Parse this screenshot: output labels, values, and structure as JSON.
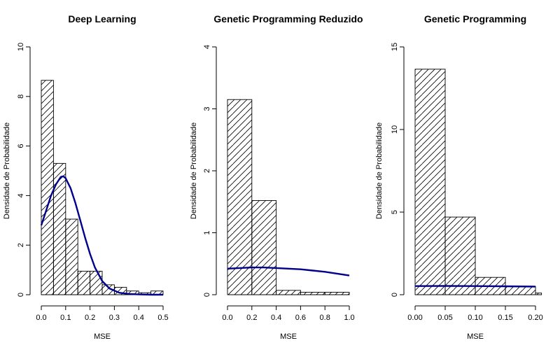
{
  "colors": {
    "curve": "#00008B",
    "bars": "#000000",
    "background": "#ffffff"
  },
  "chart_data": [
    {
      "type": "bar",
      "subtype": "histogram-with-density-curve",
      "title": "Deep Learning",
      "xlabel": "MSE",
      "ylabel": "Densidade de Probabilidade",
      "xlim": [
        0,
        0.5
      ],
      "ylim": [
        0,
        10
      ],
      "xticks": [
        "0.0",
        "0.1",
        "0.2",
        "0.3",
        "0.4",
        "0.5"
      ],
      "yticks": [
        "0",
        "2",
        "4",
        "6",
        "8",
        "10"
      ],
      "bins": [
        {
          "start": 0.0,
          "end": 0.05,
          "density": 8.65
        },
        {
          "start": 0.05,
          "end": 0.1,
          "density": 5.3
        },
        {
          "start": 0.1,
          "end": 0.15,
          "density": 3.05
        },
        {
          "start": 0.15,
          "end": 0.2,
          "density": 0.95
        },
        {
          "start": 0.2,
          "end": 0.25,
          "density": 0.95
        },
        {
          "start": 0.25,
          "end": 0.3,
          "density": 0.4
        },
        {
          "start": 0.3,
          "end": 0.35,
          "density": 0.3
        },
        {
          "start": 0.35,
          "end": 0.4,
          "density": 0.15
        },
        {
          "start": 0.4,
          "end": 0.45,
          "density": 0.08
        },
        {
          "start": 0.45,
          "end": 0.5,
          "density": 0.15
        }
      ],
      "curve": {
        "x": [
          0.0,
          0.02,
          0.04,
          0.06,
          0.08,
          0.09,
          0.1,
          0.12,
          0.14,
          0.16,
          0.18,
          0.2,
          0.22,
          0.25,
          0.28,
          0.32,
          0.36,
          0.4,
          0.45,
          0.5
        ],
        "y": [
          2.8,
          3.4,
          4.0,
          4.45,
          4.75,
          4.78,
          4.7,
          4.3,
          3.7,
          3.0,
          2.3,
          1.65,
          1.1,
          0.55,
          0.25,
          0.08,
          0.03,
          0.01,
          0.0,
          0.0
        ]
      }
    },
    {
      "type": "bar",
      "subtype": "histogram-with-density-curve",
      "title": "Genetic Programming Reduzido",
      "xlabel": "MSE",
      "ylabel": "Densidade de Probabilidade",
      "xlim": [
        0,
        1.0
      ],
      "ylim": [
        0,
        4
      ],
      "xticks": [
        "0.0",
        "0.2",
        "0.4",
        "0.6",
        "0.8",
        "1.0"
      ],
      "yticks": [
        "0",
        "1",
        "2",
        "3",
        "4"
      ],
      "bins": [
        {
          "start": 0.0,
          "end": 0.2,
          "density": 3.15
        },
        {
          "start": 0.2,
          "end": 0.4,
          "density": 1.52
        },
        {
          "start": 0.4,
          "end": 0.6,
          "density": 0.07
        },
        {
          "start": 0.6,
          "end": 0.8,
          "density": 0.04
        },
        {
          "start": 0.8,
          "end": 1.0,
          "density": 0.04
        }
      ],
      "curve": {
        "x": [
          0.0,
          0.1,
          0.2,
          0.3,
          0.4,
          0.5,
          0.6,
          0.7,
          0.8,
          0.9,
          1.0
        ],
        "y": [
          0.42,
          0.43,
          0.44,
          0.44,
          0.43,
          0.42,
          0.41,
          0.39,
          0.37,
          0.34,
          0.31
        ]
      }
    },
    {
      "type": "bar",
      "subtype": "histogram-with-density-curve",
      "title": "Genetic Programming",
      "xlabel": "MSE",
      "ylabel": "Densidade de Probabilidade",
      "xlim": [
        0,
        0.2
      ],
      "ylim": [
        0,
        15
      ],
      "xticks": [
        "0.00",
        "0.05",
        "0.10",
        "0.15",
        "0.20"
      ],
      "yticks": [
        "0",
        "5",
        "10",
        "15"
      ],
      "bins": [
        {
          "start": 0.0,
          "end": 0.05,
          "density": 13.65
        },
        {
          "start": 0.05,
          "end": 0.1,
          "density": 4.7
        },
        {
          "start": 0.1,
          "end": 0.15,
          "density": 1.05
        },
        {
          "start": 0.15,
          "end": 0.2,
          "density": 0.5
        },
        {
          "start": 0.2,
          "end": 0.21,
          "density": 0.1
        }
      ],
      "curve": {
        "x": [
          0.0,
          0.05,
          0.1,
          0.15,
          0.2
        ],
        "y": [
          0.52,
          0.53,
          0.52,
          0.51,
          0.49
        ]
      }
    }
  ]
}
